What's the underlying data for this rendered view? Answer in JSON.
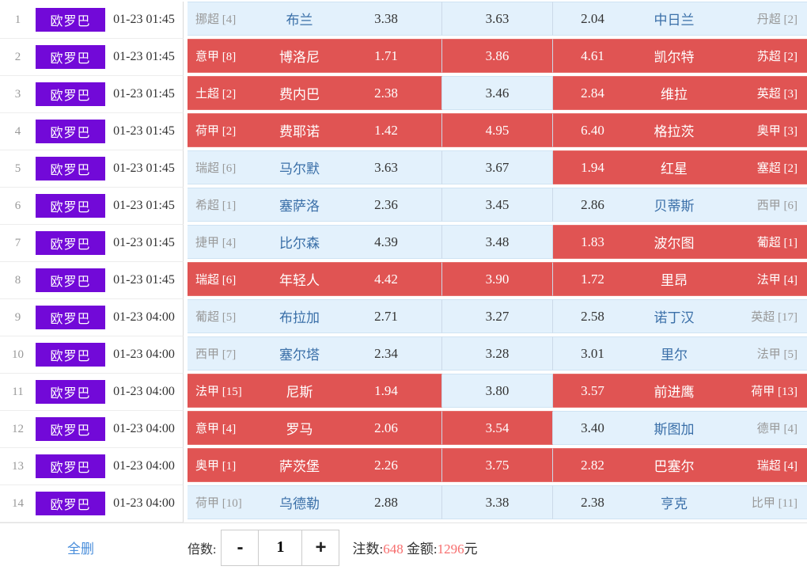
{
  "colors": {
    "badge_purple": "#7209d8",
    "selected_red": "#e05453",
    "unselected_blue": "#e3f1fc",
    "team_text_blue": "#3a6fa8",
    "league_text_gray": "#999999",
    "link_blue": "#4a8edb",
    "count_salmon": "#f76e6e"
  },
  "table": {
    "rows": [
      {
        "num": "1",
        "comp": "欧罗巴",
        "time": "01-23 01:45",
        "home_league": "挪超 [4]",
        "home_team": "布兰",
        "odds_home": "3.38",
        "odds_draw": "3.63",
        "odds_away": "2.04",
        "away_team": "中日兰",
        "away_league": "丹超 [2]",
        "selected": {
          "home": false,
          "draw": false,
          "away": false
        }
      },
      {
        "num": "2",
        "comp": "欧罗巴",
        "time": "01-23 01:45",
        "home_league": "意甲 [8]",
        "home_team": "博洛尼",
        "odds_home": "1.71",
        "odds_draw": "3.86",
        "odds_away": "4.61",
        "away_team": "凯尔特",
        "away_league": "苏超 [2]",
        "selected": {
          "home": true,
          "draw": true,
          "away": true
        }
      },
      {
        "num": "3",
        "comp": "欧罗巴",
        "time": "01-23 01:45",
        "home_league": "土超 [2]",
        "home_team": "费内巴",
        "odds_home": "2.38",
        "odds_draw": "3.46",
        "odds_away": "2.84",
        "away_team": "维拉",
        "away_league": "英超 [3]",
        "selected": {
          "home": true,
          "draw": false,
          "away": true
        }
      },
      {
        "num": "4",
        "comp": "欧罗巴",
        "time": "01-23 01:45",
        "home_league": "荷甲 [2]",
        "home_team": "费耶诺",
        "odds_home": "1.42",
        "odds_draw": "4.95",
        "odds_away": "6.40",
        "away_team": "格拉茨",
        "away_league": "奥甲 [3]",
        "selected": {
          "home": true,
          "draw": true,
          "away": true
        }
      },
      {
        "num": "5",
        "comp": "欧罗巴",
        "time": "01-23 01:45",
        "home_league": "瑞超 [6]",
        "home_team": "马尔默",
        "odds_home": "3.63",
        "odds_draw": "3.67",
        "odds_away": "1.94",
        "away_team": "红星",
        "away_league": "塞超 [2]",
        "selected": {
          "home": false,
          "draw": false,
          "away": true
        }
      },
      {
        "num": "6",
        "comp": "欧罗巴",
        "time": "01-23 01:45",
        "home_league": "希超 [1]",
        "home_team": "塞萨洛",
        "odds_home": "2.36",
        "odds_draw": "3.45",
        "odds_away": "2.86",
        "away_team": "贝蒂斯",
        "away_league": "西甲 [6]",
        "selected": {
          "home": false,
          "draw": false,
          "away": false
        }
      },
      {
        "num": "7",
        "comp": "欧罗巴",
        "time": "01-23 01:45",
        "home_league": "捷甲 [4]",
        "home_team": "比尔森",
        "odds_home": "4.39",
        "odds_draw": "3.48",
        "odds_away": "1.83",
        "away_team": "波尔图",
        "away_league": "葡超 [1]",
        "selected": {
          "home": false,
          "draw": false,
          "away": true
        }
      },
      {
        "num": "8",
        "comp": "欧罗巴",
        "time": "01-23 01:45",
        "home_league": "瑞超 [6]",
        "home_team": "年轻人",
        "odds_home": "4.42",
        "odds_draw": "3.90",
        "odds_away": "1.72",
        "away_team": "里昂",
        "away_league": "法甲 [4]",
        "selected": {
          "home": true,
          "draw": true,
          "away": true
        }
      },
      {
        "num": "9",
        "comp": "欧罗巴",
        "time": "01-23 04:00",
        "home_league": "葡超 [5]",
        "home_team": "布拉加",
        "odds_home": "2.71",
        "odds_draw": "3.27",
        "odds_away": "2.58",
        "away_team": "诺丁汉",
        "away_league": "英超 [17]",
        "selected": {
          "home": false,
          "draw": false,
          "away": false
        }
      },
      {
        "num": "10",
        "comp": "欧罗巴",
        "time": "01-23 04:00",
        "home_league": "西甲 [7]",
        "home_team": "塞尔塔",
        "odds_home": "2.34",
        "odds_draw": "3.28",
        "odds_away": "3.01",
        "away_team": "里尔",
        "away_league": "法甲 [5]",
        "selected": {
          "home": false,
          "draw": false,
          "away": false
        }
      },
      {
        "num": "11",
        "comp": "欧罗巴",
        "time": "01-23 04:00",
        "home_league": "法甲 [15]",
        "home_team": "尼斯",
        "odds_home": "1.94",
        "odds_draw": "3.80",
        "odds_away": "3.57",
        "away_team": "前进鹰",
        "away_league": "荷甲 [13]",
        "selected": {
          "home": true,
          "draw": false,
          "away": true
        }
      },
      {
        "num": "12",
        "comp": "欧罗巴",
        "time": "01-23 04:00",
        "home_league": "意甲 [4]",
        "home_team": "罗马",
        "odds_home": "2.06",
        "odds_draw": "3.54",
        "odds_away": "3.40",
        "away_team": "斯图加",
        "away_league": "德甲 [4]",
        "selected": {
          "home": true,
          "draw": true,
          "away": false
        }
      },
      {
        "num": "13",
        "comp": "欧罗巴",
        "time": "01-23 04:00",
        "home_league": "奥甲 [1]",
        "home_team": "萨茨堡",
        "odds_home": "2.26",
        "odds_draw": "3.75",
        "odds_away": "2.82",
        "away_team": "巴塞尔",
        "away_league": "瑞超 [4]",
        "selected": {
          "home": true,
          "draw": true,
          "away": true
        }
      },
      {
        "num": "14",
        "comp": "欧罗巴",
        "time": "01-23 04:00",
        "home_league": "荷甲 [10]",
        "home_team": "乌德勒",
        "odds_home": "2.88",
        "odds_draw": "3.38",
        "odds_away": "2.38",
        "away_team": "亨克",
        "away_league": "比甲 [11]",
        "selected": {
          "home": false,
          "draw": false,
          "away": false
        }
      }
    ]
  },
  "footer": {
    "delete_all_label": "全删",
    "multiplier_label": "倍数:",
    "minus_label": "-",
    "multiplier_value": "1",
    "plus_label": "+",
    "bets_label": "注数:",
    "bets_value": "648",
    "amount_label": "金额:",
    "amount_value": "1296",
    "amount_unit": "元"
  }
}
